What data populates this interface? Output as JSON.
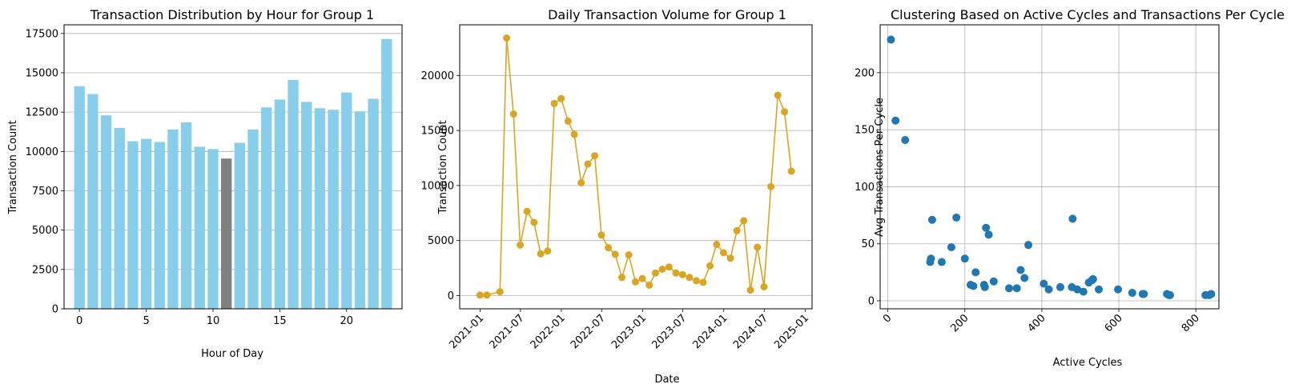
{
  "chart_data": [
    {
      "type": "bar",
      "title": "Transaction Distribution by Hour for Group 1",
      "xlabel": "Hour of Day",
      "ylabel": "Transaction Count",
      "xlim": [
        -1.15,
        24.15
      ],
      "ylim": [
        0,
        18050
      ],
      "xticks": [
        0,
        5,
        10,
        15,
        20
      ],
      "yticks": [
        0,
        2500,
        5000,
        7500,
        10000,
        12500,
        15000,
        17500
      ],
      "grid": "horizontal",
      "highlight_color": "#808080",
      "bar_color": "#87ceeb",
      "categories": [
        0,
        1,
        2,
        3,
        4,
        5,
        6,
        7,
        8,
        9,
        10,
        11,
        12,
        13,
        14,
        15,
        16,
        17,
        18,
        19,
        20,
        21,
        22,
        23
      ],
      "values": [
        14150,
        13650,
        12300,
        11500,
        10650,
        10800,
        10600,
        11400,
        11850,
        10300,
        10150,
        9550,
        10550,
        11400,
        12800,
        13300,
        14550,
        13150,
        12750,
        12650,
        13750,
        12550,
        13350,
        17150
      ],
      "highlight_index": 11
    },
    {
      "type": "line",
      "title": "Daily Transaction Volume for Group 1",
      "xlabel": "Date",
      "ylabel": "Transaction Count",
      "xlim": [
        "2020-10-01",
        "2025-02-01"
      ],
      "ylim": [
        -1200,
        24600
      ],
      "yticks": [
        0,
        5000,
        10000,
        15000,
        20000
      ],
      "xticks": [
        "2021-01",
        "2021-07",
        "2022-01",
        "2022-07",
        "2023-01",
        "2023-07",
        "2024-01",
        "2024-07",
        "2025-01"
      ],
      "grid": "horizontal",
      "color": "#daa520",
      "x": [
        "2020-12-31",
        "2021-01-31",
        "2021-03-31",
        "2021-04-30",
        "2021-05-31",
        "2021-06-30",
        "2021-07-31",
        "2021-08-31",
        "2021-09-30",
        "2021-10-31",
        "2021-11-30",
        "2021-12-31",
        "2022-01-31",
        "2022-02-28",
        "2022-03-31",
        "2022-04-30",
        "2022-05-31",
        "2022-06-30",
        "2022-07-31",
        "2022-08-31",
        "2022-09-30",
        "2022-10-31",
        "2022-11-30",
        "2022-12-31",
        "2023-01-31",
        "2023-02-28",
        "2023-03-31",
        "2023-04-30",
        "2023-05-31",
        "2023-06-30",
        "2023-07-31",
        "2023-08-31",
        "2023-09-30",
        "2023-10-31",
        "2023-11-30",
        "2023-12-31",
        "2024-01-31",
        "2024-02-29",
        "2024-03-31",
        "2024-04-30",
        "2024-05-31",
        "2024-06-30",
        "2024-07-31",
        "2024-08-31",
        "2024-09-30",
        "2024-10-31"
      ],
      "y": [
        50,
        50,
        350,
        23400,
        16500,
        4600,
        7650,
        6650,
        3800,
        4050,
        17450,
        17900,
        15850,
        14650,
        10250,
        11950,
        12700,
        5500,
        4350,
        3750,
        1650,
        3700,
        1250,
        1550,
        950,
        2050,
        2400,
        2600,
        2050,
        1900,
        1650,
        1350,
        1200,
        2700,
        4650,
        3900,
        3400,
        5900,
        6800,
        500,
        4400,
        800,
        9900,
        18200,
        16700,
        11300
      ]
    },
    {
      "type": "scatter",
      "title": "Clustering Based on Active Cycles and Transactions Per Cycle",
      "xlabel": "Active Cycles",
      "ylabel": "Avg Transactions Per Cycle",
      "xlim": [
        -20,
        860
      ],
      "ylim": [
        -7,
        242
      ],
      "xticks": [
        0,
        200,
        400,
        600,
        800
      ],
      "yticks": [
        0,
        50,
        100,
        150,
        200
      ],
      "grid": "both",
      "color": "#1f77b4",
      "points": [
        {
          "x": 8,
          "y": 229
        },
        {
          "x": 20,
          "y": 158
        },
        {
          "x": 45,
          "y": 141
        },
        {
          "x": 110,
          "y": 34
        },
        {
          "x": 112,
          "y": 37
        },
        {
          "x": 115,
          "y": 71
        },
        {
          "x": 140,
          "y": 34
        },
        {
          "x": 165,
          "y": 47
        },
        {
          "x": 178,
          "y": 73
        },
        {
          "x": 200,
          "y": 37
        },
        {
          "x": 215,
          "y": 14
        },
        {
          "x": 222,
          "y": 13
        },
        {
          "x": 228,
          "y": 25
        },
        {
          "x": 250,
          "y": 14
        },
        {
          "x": 252,
          "y": 12
        },
        {
          "x": 255,
          "y": 64
        },
        {
          "x": 262,
          "y": 58
        },
        {
          "x": 275,
          "y": 17
        },
        {
          "x": 315,
          "y": 11
        },
        {
          "x": 335,
          "y": 11
        },
        {
          "x": 345,
          "y": 27
        },
        {
          "x": 355,
          "y": 20
        },
        {
          "x": 365,
          "y": 49
        },
        {
          "x": 405,
          "y": 15
        },
        {
          "x": 418,
          "y": 10
        },
        {
          "x": 448,
          "y": 12
        },
        {
          "x": 478,
          "y": 12
        },
        {
          "x": 480,
          "y": 72
        },
        {
          "x": 492,
          "y": 10
        },
        {
          "x": 508,
          "y": 8
        },
        {
          "x": 522,
          "y": 16
        },
        {
          "x": 530,
          "y": 18
        },
        {
          "x": 533,
          "y": 19
        },
        {
          "x": 548,
          "y": 10
        },
        {
          "x": 598,
          "y": 10
        },
        {
          "x": 635,
          "y": 7
        },
        {
          "x": 662,
          "y": 6
        },
        {
          "x": 665,
          "y": 6
        },
        {
          "x": 725,
          "y": 6
        },
        {
          "x": 730,
          "y": 5
        },
        {
          "x": 733,
          "y": 5
        },
        {
          "x": 825,
          "y": 5
        },
        {
          "x": 835,
          "y": 5
        },
        {
          "x": 840,
          "y": 6
        }
      ]
    }
  ]
}
